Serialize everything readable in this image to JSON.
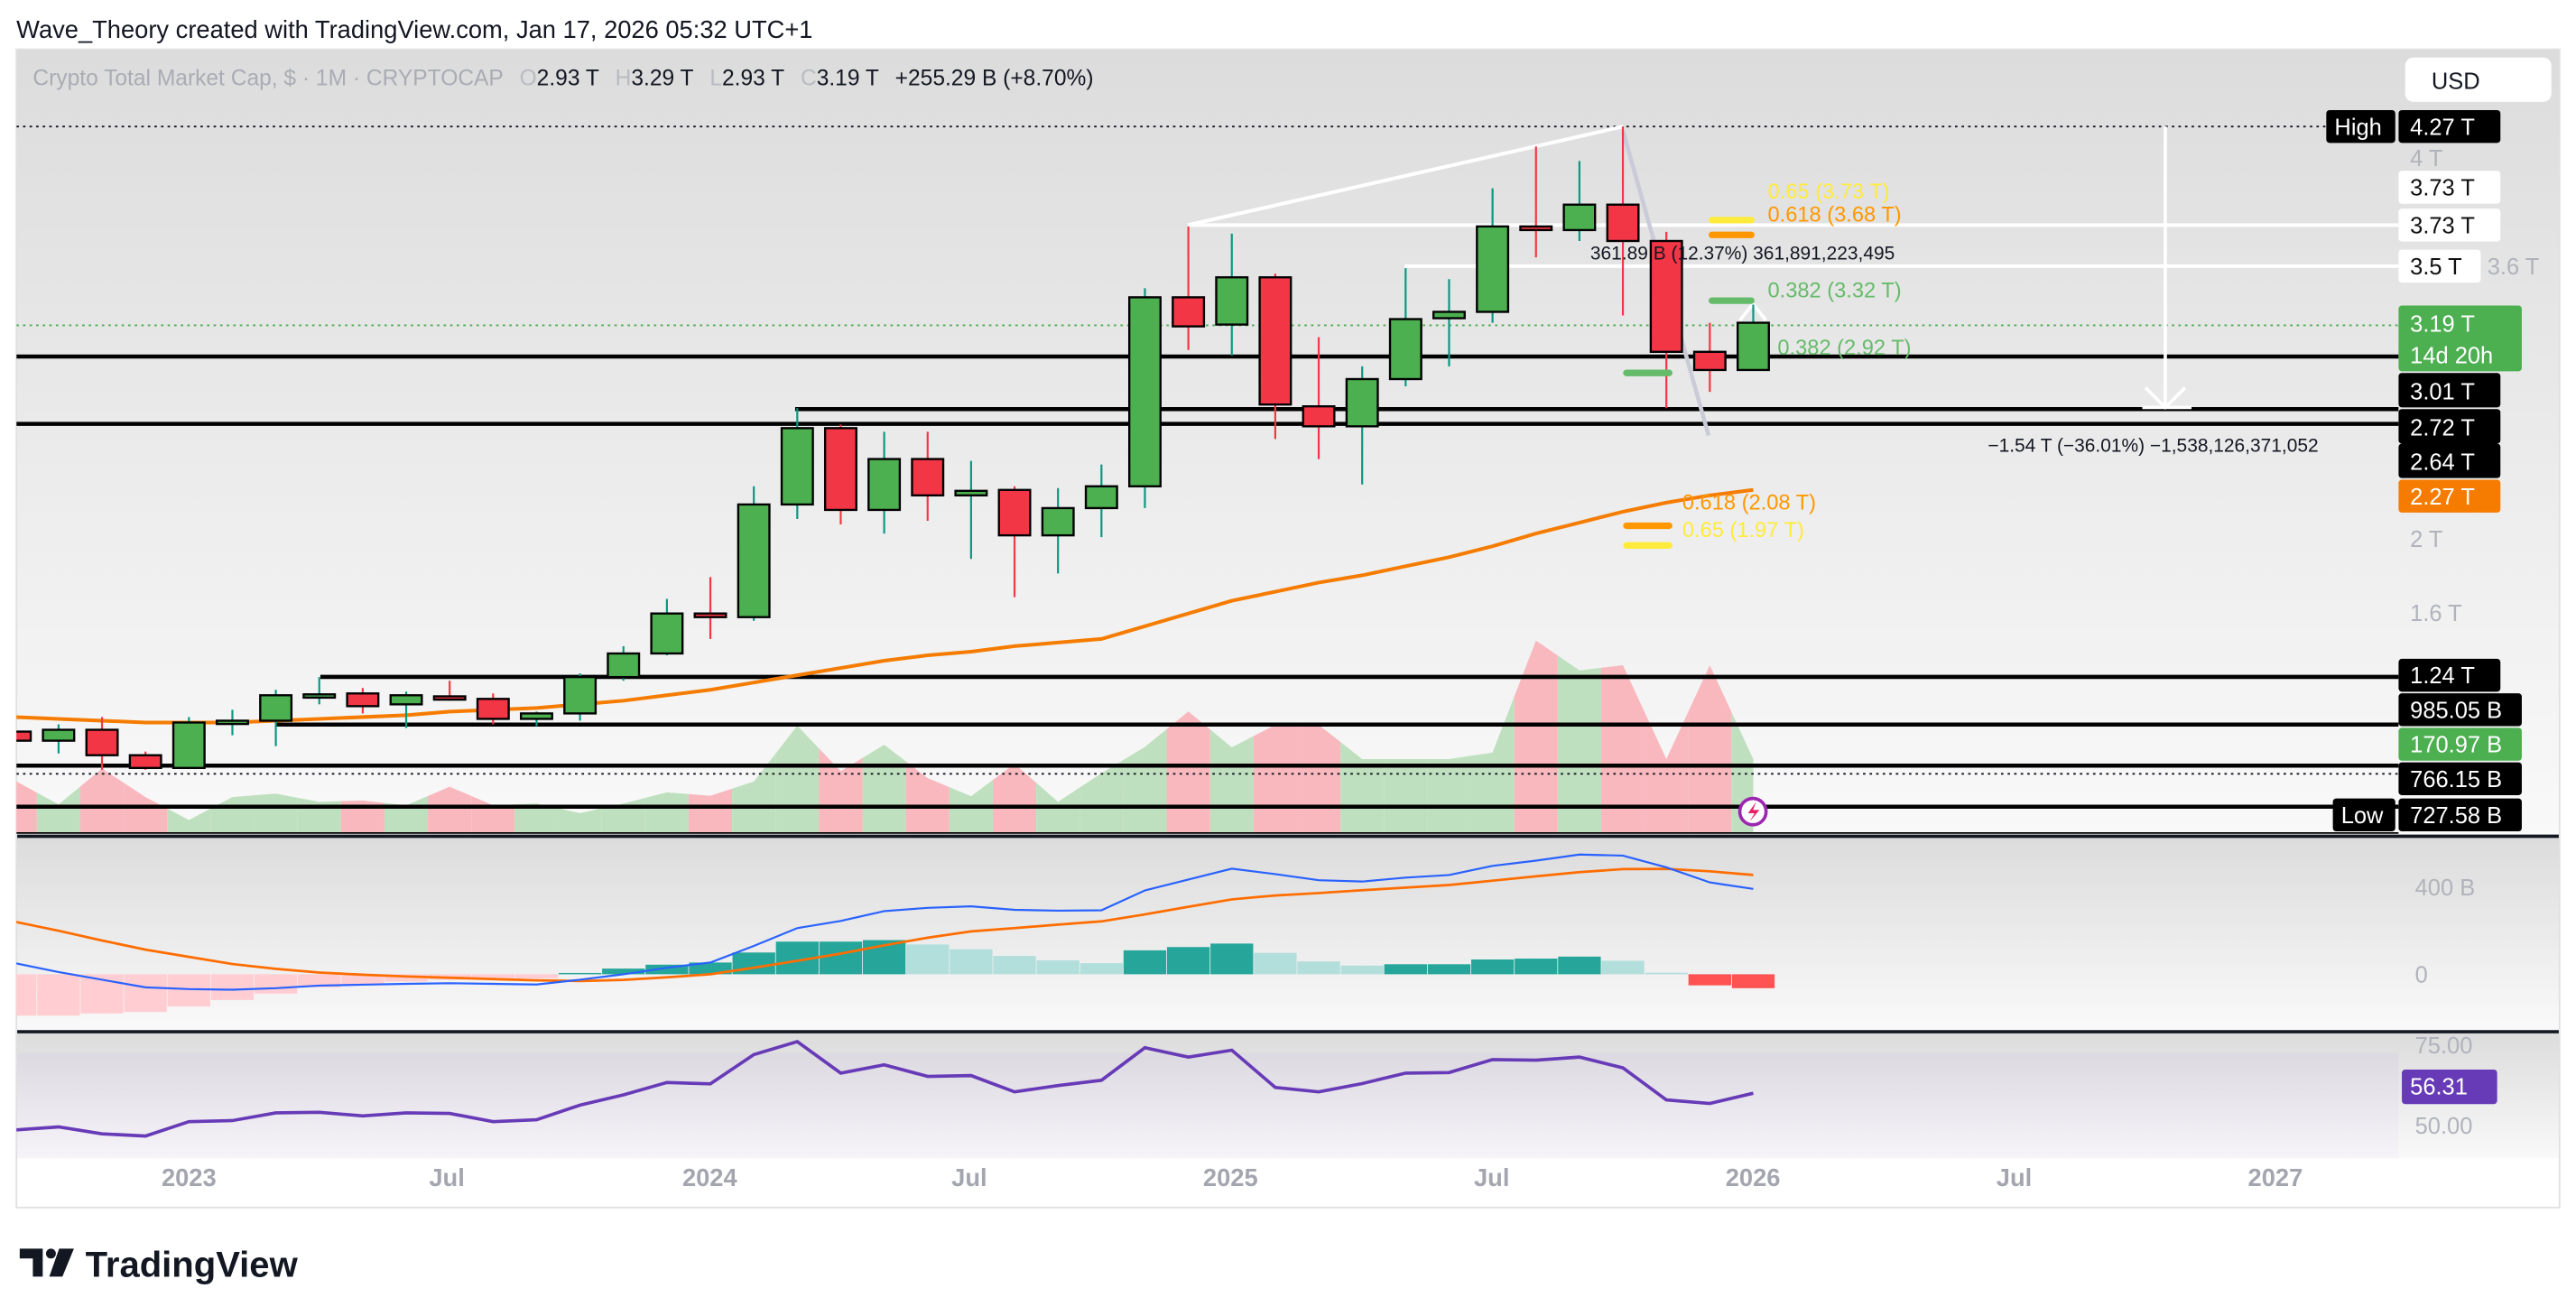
{
  "header": {
    "attribution": "Wave_Theory created with TradingView.com, Jan 17, 2026 05:32 UTC+1"
  },
  "legend": {
    "symbol": "Crypto Total Market Cap, $ · 1M · CRYPTOCAP",
    "o_label": "O",
    "o_value": "2.93 T",
    "h_label": "H",
    "h_value": "3.29 T",
    "l_label": "L",
    "l_value": "2.93 T",
    "c_label": "C",
    "c_value": "3.19 T",
    "change": "+255.29 B (+8.70%)"
  },
  "currency_button": "USD",
  "price_axis": {
    "high_tag": "High",
    "high": "4.27 T",
    "faint_4t": "4 T",
    "faint_36t": "3.6 T",
    "l373a": "3.73 T",
    "l373b": "3.73 T",
    "l35": "3.5 T",
    "last": "3.19 T",
    "countdown": "14d 20h",
    "l301": "3.01 T",
    "l272": "2.72 T",
    "l264": "2.64 T",
    "ma": "2.27 T",
    "t2": "2 T",
    "t16": "1.6 T",
    "l124": "1.24 T",
    "l985": "985.05 B",
    "vol": "170.97 B",
    "l766": "766.15 B",
    "low_tag": "Low",
    "low": "727.58 B"
  },
  "macd_axis": {
    "t400": "400 B",
    "t0": "0"
  },
  "rsi_axis": {
    "t75": "75.00",
    "t50": "50.00",
    "value": "56.31"
  },
  "time_axis": [
    "2023",
    "Jul",
    "2024",
    "Jul",
    "2025",
    "Jul",
    "2026",
    "Jul",
    "2027"
  ],
  "annotations": {
    "fib_065_top": "0.65 (3.73 T)",
    "fib_0618_top": "0.618 (3.68 T)",
    "fib_0382_top": "0.382 (3.32 T)",
    "fib_0382_mid": "0.382 (2.92 T)",
    "fib_0618_bot": "0.618 (2.08 T)",
    "fib_065_bot": "0.65 (1.97 T)",
    "measure_up": "361.89 B (12.37%) 361,891,223,495",
    "measure_down": "−1.54 T (−36.01%) −1,538,126,371,052"
  },
  "colors": {
    "up_body": "#4caf50",
    "down_body": "#f23645",
    "up_wick": "#089981",
    "ma": "#f57c00",
    "macd": "#2962ff",
    "signal": "#ff6d00",
    "rsi": "#673ab7",
    "fib_yellow": "#ffeb3b",
    "fib_orange": "#ff9800",
    "fib_green": "#66bb6a"
  },
  "footer": {
    "logo": "TradingView"
  },
  "chart_data": [
    {
      "type": "candlestick",
      "title": "Crypto Total Market Cap, $ · 1M · CRYPTOCAP",
      "unit": "T",
      "y_scale": "linear",
      "ylim": [
        0.73,
        4.27
      ],
      "x": [
        "2022-09",
        "2022-10",
        "2022-11",
        "2022-12",
        "2023-01",
        "2023-02",
        "2023-03",
        "2023-04",
        "2023-05",
        "2023-06",
        "2023-07",
        "2023-08",
        "2023-09",
        "2023-10",
        "2023-11",
        "2023-12",
        "2024-01",
        "2024-02",
        "2024-03",
        "2024-04",
        "2024-05",
        "2024-06",
        "2024-07",
        "2024-08",
        "2024-09",
        "2024-10",
        "2024-11",
        "2024-12",
        "2025-01",
        "2025-02",
        "2025-03",
        "2025-04",
        "2025-05",
        "2025-06",
        "2025-07",
        "2025-08",
        "2025-09",
        "2025-10",
        "2025-11",
        "2025-12",
        "2026-01"
      ],
      "ohlc": [
        [
          0.94,
          0.95,
          0.88,
          0.89
        ],
        [
          0.89,
          0.98,
          0.82,
          0.95
        ],
        [
          0.95,
          1.02,
          0.73,
          0.81
        ],
        [
          0.81,
          0.83,
          0.73,
          0.74
        ],
        [
          0.74,
          1.02,
          0.74,
          0.99
        ],
        [
          0.99,
          1.06,
          0.92,
          1.0
        ],
        [
          1.0,
          1.17,
          0.86,
          1.14
        ],
        [
          1.14,
          1.24,
          1.09,
          1.145
        ],
        [
          1.15,
          1.18,
          1.04,
          1.08
        ],
        [
          1.09,
          1.16,
          0.96,
          1.14
        ],
        [
          1.134,
          1.22,
          1.11,
          1.124
        ],
        [
          1.12,
          1.15,
          0.98,
          1.01
        ],
        [
          1.01,
          1.05,
          0.97,
          1.04
        ],
        [
          1.04,
          1.26,
          1.0,
          1.24
        ],
        [
          1.24,
          1.41,
          1.22,
          1.37
        ],
        [
          1.37,
          1.67,
          1.36,
          1.59
        ],
        [
          1.59,
          1.79,
          1.45,
          1.57
        ],
        [
          1.57,
          2.29,
          1.55,
          2.19
        ],
        [
          2.19,
          2.72,
          2.11,
          2.61
        ],
        [
          2.61,
          2.63,
          2.08,
          2.16
        ],
        [
          2.16,
          2.59,
          2.03,
          2.44
        ],
        [
          2.44,
          2.59,
          2.1,
          2.24
        ],
        [
          2.24,
          2.43,
          1.89,
          2.265
        ],
        [
          2.27,
          2.29,
          1.68,
          2.02
        ],
        [
          2.02,
          2.28,
          1.81,
          2.17
        ],
        [
          2.17,
          2.41,
          2.01,
          2.29
        ],
        [
          2.29,
          3.38,
          2.17,
          3.33
        ],
        [
          3.33,
          3.72,
          3.04,
          3.17
        ],
        [
          3.18,
          3.68,
          3.01,
          3.44
        ],
        [
          3.44,
          3.46,
          2.55,
          2.74
        ],
        [
          2.73,
          3.11,
          2.44,
          2.62
        ],
        [
          2.62,
          2.95,
          2.3,
          2.88
        ],
        [
          2.88,
          3.49,
          2.84,
          3.21
        ],
        [
          3.215,
          3.43,
          2.95,
          3.25
        ],
        [
          3.25,
          3.93,
          3.19,
          3.72
        ],
        [
          3.72,
          4.16,
          3.55,
          3.7
        ],
        [
          3.7,
          4.08,
          3.64,
          3.84
        ],
        [
          3.84,
          4.27,
          3.23,
          3.64
        ],
        [
          3.64,
          3.69,
          2.72,
          3.03
        ],
        [
          3.03,
          3.19,
          2.81,
          2.93
        ],
        [
          2.93,
          3.29,
          2.93,
          3.19
        ]
      ]
    },
    {
      "type": "area",
      "series": "volume",
      "unit": "B",
      "values": [
        121,
        66,
        149,
        83,
        30,
        83,
        91,
        72,
        75,
        64,
        107,
        64,
        68,
        46,
        68,
        94,
        86,
        119,
        248,
        143,
        204,
        127,
        85,
        160,
        72,
        138,
        199,
        281,
        198,
        250,
        250,
        171,
        171,
        171,
        186,
        445,
        376,
        388,
        171,
        388,
        170.97
      ]
    },
    {
      "type": "line",
      "series": "moving-average",
      "unit": "T",
      "values": [
        1.02,
        1.01,
        1.0,
        0.99,
        0.99,
        0.99,
        1.0,
        1.01,
        1.02,
        1.03,
        1.05,
        1.06,
        1.07,
        1.09,
        1.11,
        1.14,
        1.17,
        1.21,
        1.25,
        1.29,
        1.33,
        1.36,
        1.38,
        1.41,
        1.43,
        1.45,
        1.52,
        1.59,
        1.66,
        1.71,
        1.76,
        1.8,
        1.85,
        1.9,
        1.96,
        2.03,
        2.09,
        2.15,
        2.2,
        2.24,
        2.27
      ]
    },
    {
      "type": "line",
      "series": "macd",
      "unit": "B",
      "macd": [
        51,
        10,
        -25,
        -60,
        -68,
        -71,
        -64,
        -52,
        -48,
        -44,
        -41,
        -44,
        -47,
        -25,
        0,
        30,
        54,
        130,
        212,
        245,
        290,
        305,
        312,
        296,
        292,
        294,
        385,
        435,
        485,
        460,
        432,
        426,
        444,
        456,
        498,
        522,
        550,
        545,
        491,
        422,
        392
      ],
      "signal": [
        241,
        200,
        155,
        113,
        80,
        47,
        25,
        8,
        -2,
        -10,
        -16,
        -22,
        -28,
        -31,
        -26,
        -14,
        0,
        30,
        62,
        95,
        133,
        168,
        197,
        212,
        228,
        243,
        275,
        310,
        344,
        362,
        373,
        386,
        398,
        410,
        430,
        450,
        469,
        483,
        484,
        473,
        456
      ]
    },
    {
      "type": "line",
      "series": "rsi",
      "ylim_labels": [
        50,
        75
      ],
      "values": [
        43.0,
        44.1,
        41.6,
        40.8,
        46.0,
        46.4,
        49.2,
        49.4,
        48.1,
        49.2,
        49.0,
        46.0,
        46.7,
        52.0,
        55.7,
        60.2,
        59.7,
        70.3,
        75.0,
        63.6,
        66.6,
        62.4,
        62.7,
        56.8,
        59.1,
        61.0,
        72.8,
        69.4,
        71.9,
        58.4,
        56.8,
        59.8,
        63.6,
        63.8,
        68.5,
        68.3,
        69.4,
        65.5,
        53.9,
        52.6,
        56.31
      ]
    }
  ]
}
